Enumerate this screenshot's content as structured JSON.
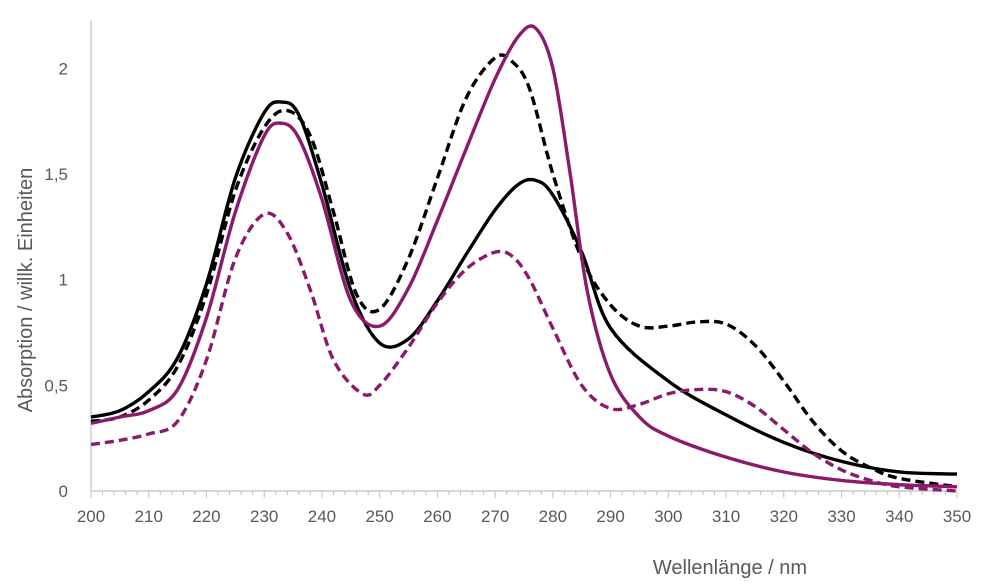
{
  "chart_data": {
    "type": "line",
    "title": "",
    "xlabel": "Wellenlänge / nm",
    "ylabel": "Absorption / willk. Einheiten",
    "xlim": [
      200,
      350
    ],
    "ylim": [
      0,
      2.2
    ],
    "x_ticks": [
      200,
      210,
      220,
      230,
      240,
      250,
      260,
      270,
      280,
      290,
      300,
      310,
      320,
      330,
      340,
      350
    ],
    "x_tick_labels": [
      "200",
      "210",
      "220",
      "230",
      "240",
      "250",
      "260",
      "270",
      "280",
      "290",
      "300",
      "310",
      "320",
      "330",
      "340",
      "350"
    ],
    "y_ticks": [
      0,
      0.5,
      1,
      1.5,
      2
    ],
    "y_tick_labels": [
      "0",
      "0,5",
      "1",
      "1,5",
      "2"
    ],
    "grid": false,
    "legend": "none",
    "series": [
      {
        "color": "#000000",
        "dash": "solid",
        "x": [
          200,
          205,
          210,
          215,
          220,
          225,
          230,
          233,
          236,
          240,
          245,
          250,
          255,
          260,
          265,
          270,
          274,
          277,
          280,
          285,
          290,
          300,
          310,
          320,
          330,
          340,
          350
        ],
        "y": [
          0.35,
          0.38,
          0.47,
          0.63,
          0.98,
          1.48,
          1.79,
          1.84,
          1.78,
          1.45,
          0.95,
          0.7,
          0.72,
          0.9,
          1.12,
          1.33,
          1.45,
          1.47,
          1.4,
          1.13,
          0.77,
          0.52,
          0.36,
          0.23,
          0.14,
          0.09,
          0.08
        ]
      },
      {
        "color": "#000000",
        "dash": "dashed",
        "x": [
          200,
          205,
          210,
          215,
          220,
          225,
          230,
          234,
          238,
          242,
          246,
          250,
          255,
          260,
          265,
          270,
          273,
          276,
          280,
          285,
          290,
          295,
          300,
          305,
          310,
          315,
          320,
          325,
          330,
          335,
          340,
          350
        ],
        "y": [
          0.33,
          0.35,
          0.43,
          0.59,
          0.93,
          1.42,
          1.72,
          1.8,
          1.68,
          1.32,
          0.93,
          0.86,
          1.1,
          1.48,
          1.86,
          2.05,
          2.03,
          1.9,
          1.5,
          1.1,
          0.88,
          0.78,
          0.78,
          0.8,
          0.79,
          0.69,
          0.52,
          0.33,
          0.19,
          0.11,
          0.06,
          0.02
        ]
      },
      {
        "color": "#8b1a6b",
        "dash": "solid",
        "x": [
          200,
          205,
          210,
          215,
          220,
          225,
          230,
          233,
          236,
          240,
          245,
          250,
          255,
          260,
          265,
          270,
          274,
          277,
          280,
          283,
          286,
          290,
          295,
          300,
          310,
          320,
          330,
          340,
          350
        ],
        "y": [
          0.32,
          0.35,
          0.38,
          0.48,
          0.82,
          1.32,
          1.68,
          1.74,
          1.67,
          1.38,
          0.9,
          0.78,
          0.96,
          1.28,
          1.62,
          1.95,
          2.15,
          2.19,
          2.0,
          1.5,
          0.94,
          0.55,
          0.35,
          0.26,
          0.16,
          0.09,
          0.05,
          0.03,
          0.02
        ]
      },
      {
        "color": "#8b1a6b",
        "dash": "dashed",
        "x": [
          200,
          205,
          210,
          215,
          220,
          225,
          230,
          234,
          238,
          242,
          247,
          250,
          255,
          260,
          265,
          270,
          273,
          276,
          280,
          285,
          290,
          295,
          300,
          305,
          310,
          315,
          320,
          325,
          330,
          335,
          340,
          350
        ],
        "y": [
          0.22,
          0.24,
          0.27,
          0.33,
          0.62,
          1.1,
          1.31,
          1.22,
          0.95,
          0.62,
          0.46,
          0.5,
          0.68,
          0.89,
          1.05,
          1.13,
          1.11,
          1.0,
          0.77,
          0.5,
          0.39,
          0.41,
          0.46,
          0.48,
          0.47,
          0.4,
          0.29,
          0.18,
          0.1,
          0.05,
          0.02,
          0.0
        ]
      }
    ]
  }
}
